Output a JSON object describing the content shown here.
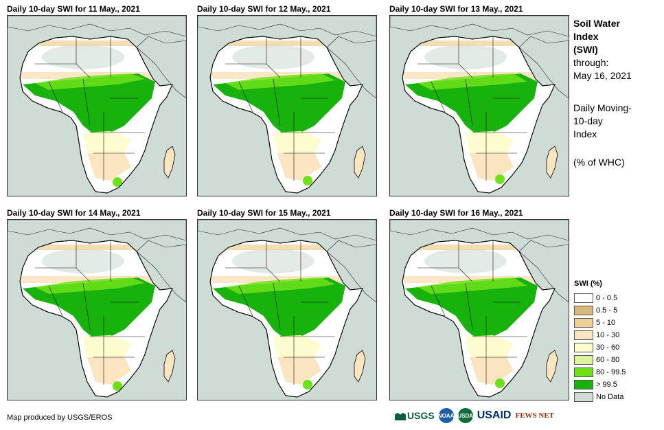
{
  "panels": [
    {
      "title": "Daily 10-day  SWI for 11 May., 2021"
    },
    {
      "title": "Daily 10-day  SWI for 12 May., 2021"
    },
    {
      "title": "Daily 10-day  SWI for 13 May., 2021"
    },
    {
      "title": "Daily 10-day  SWI for 14 May., 2021"
    },
    {
      "title": "Daily 10-day  SWI for 15 May., 2021"
    },
    {
      "title": "Daily 10-day  SWI for 16 May., 2021"
    }
  ],
  "info": {
    "line1": "Soil Water",
    "line2": "Index",
    "line3": "(SWI)",
    "line4": "through:",
    "line5": "May 16, 2021",
    "line6": "Daily Moving-",
    "line7": "10-day",
    "line8": "Index",
    "line9": "(% of WHC)"
  },
  "legend": {
    "title": "SWI (%)",
    "items": [
      {
        "label": "0 - 0.5",
        "color": "#ffffff"
      },
      {
        "label": "0.5 - 5",
        "color": "#d9b97a"
      },
      {
        "label": "5 - 10",
        "color": "#efcf96"
      },
      {
        "label": "10 - 30",
        "color": "#fbe4c0"
      },
      {
        "label": "30 - 60",
        "color": "#fdfccf"
      },
      {
        "label": "60 - 80",
        "color": "#ddf59a"
      },
      {
        "label": "80 - 99.5",
        "color": "#6ee01a"
      },
      {
        "label": "> 99.5",
        "color": "#17b20c"
      },
      {
        "label": "No Data",
        "color": "#cfdcd6"
      }
    ]
  },
  "credit": "Map produced by USGS/EROS",
  "logos": {
    "usgs": "USGS",
    "noaa": "NOAA",
    "usda": "USDA",
    "usaid": "USAID",
    "fews": "FEWS NET"
  }
}
